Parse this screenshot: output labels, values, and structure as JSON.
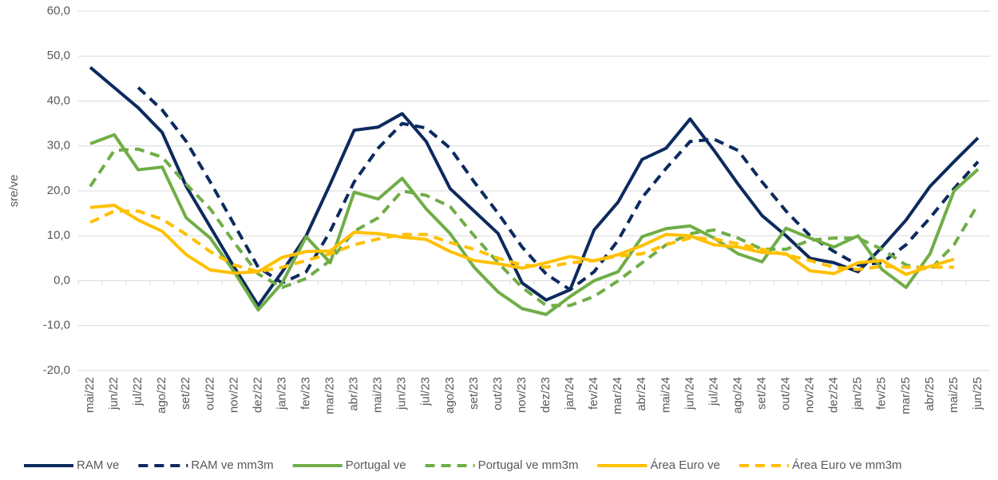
{
  "chart_data": {
    "type": "line",
    "y_label": "sre/ve",
    "categories": [
      "mai/22",
      "jun/22",
      "jul/22",
      "ago/22",
      "set/22",
      "out/22",
      "nov/22",
      "dez/22",
      "jan/23",
      "fev/23",
      "mar/23",
      "abr/23",
      "mai/23",
      "jun/23",
      "jul/23",
      "ago/23",
      "set/23",
      "out/23",
      "nov/23",
      "dez/23",
      "jan/24",
      "fev/24",
      "mar/24",
      "abr/24",
      "mai/24",
      "jun/24",
      "jul/24",
      "ago/24",
      "set/24",
      "out/24",
      "nov/24",
      "dez/24",
      "jan/25",
      "fev/25",
      "mar/25",
      "abr/25",
      "mai/25",
      "jun/25"
    ],
    "series": [
      {
        "name": "RAM ve",
        "color": "#0c2a5e",
        "dashed": false,
        "values": [
          47.5,
          43,
          38.5,
          33,
          21,
          12,
          3,
          -5.5,
          2,
          10,
          21.5,
          33.5,
          34.2,
          37.2,
          31,
          20.5,
          15.5,
          10.5,
          -0.5,
          -4.3,
          -2,
          11.3,
          17.5,
          27,
          29.5,
          36,
          29,
          21.5,
          14.5,
          10,
          5,
          4,
          2,
          7.5,
          13.5,
          21,
          26.5,
          31.8
        ]
      },
      {
        "name": "RAM ve mm3m",
        "color": "#0c2a5e",
        "dashed": true,
        "values": [
          null,
          null,
          43,
          38,
          31,
          22,
          12.5,
          3,
          -0.5,
          2,
          11,
          22,
          29.5,
          35,
          34,
          29.5,
          22,
          15,
          7.5,
          1.5,
          -2,
          2,
          9,
          18.5,
          25,
          31,
          31.5,
          29,
          22,
          15.5,
          10,
          6.5,
          3.5,
          4,
          8,
          14,
          20.5,
          26.5
        ]
      },
      {
        "name": "Portugal ve",
        "color": "#70ad47",
        "dashed": false,
        "values": [
          30.5,
          32.5,
          24.7,
          25.3,
          14,
          9.5,
          2,
          -6.5,
          -0.5,
          9.8,
          4,
          19.7,
          18.2,
          22.8,
          16,
          10.5,
          3,
          -2.5,
          -6.2,
          -7.5,
          -3.5,
          0,
          2,
          9.8,
          11.6,
          12.2,
          9.5,
          6,
          4.2,
          11.7,
          9.5,
          7.5,
          10,
          2.5,
          -1.5,
          6,
          20,
          24.8
        ]
      },
      {
        "name": "Portugal ve mm3m",
        "color": "#70ad47",
        "dashed": true,
        "values": [
          21,
          29,
          29.3,
          27.5,
          21.5,
          16,
          8.5,
          1.5,
          -1.5,
          0.5,
          4.5,
          11,
          14,
          20,
          19,
          16.5,
          10,
          4,
          -1.5,
          -5.5,
          -5.5,
          -3.5,
          0,
          4,
          8,
          10.5,
          11.3,
          9.5,
          7,
          7,
          9,
          9.5,
          9.5,
          7,
          3.5,
          2.5,
          8,
          17
        ]
      },
      {
        "name": "Área Euro ve",
        "color": "#ffc000",
        "dashed": false,
        "values": [
          16.3,
          16.8,
          13.5,
          11,
          5.8,
          2.4,
          1.7,
          2,
          5.2,
          6.5,
          6.6,
          10.8,
          10.5,
          9.7,
          9.2,
          6.5,
          4.5,
          3.8,
          2.8,
          4,
          5.4,
          4.4,
          5.8,
          7.8,
          10.3,
          10,
          8,
          7.5,
          6.3,
          6,
          2.2,
          1.6,
          4,
          4.5,
          1.4,
          3.2,
          4.8,
          null
        ]
      },
      {
        "name": "Área Euro ve mm3m",
        "color": "#ffc000",
        "dashed": true,
        "values": [
          13,
          15.5,
          15.5,
          13.7,
          10.3,
          6.5,
          3.5,
          2,
          3,
          4.5,
          6,
          8,
          9.3,
          10.3,
          10.3,
          8.5,
          7,
          5,
          3.5,
          3,
          4,
          4.5,
          5.5,
          6,
          8,
          9.5,
          9.3,
          8.2,
          7,
          5.8,
          4.5,
          3,
          2.5,
          3.2,
          3,
          3,
          3,
          null
        ]
      }
    ],
    "ylim": [
      -20,
      60
    ],
    "yticks": [
      {
        "value": -20,
        "label": "-20,0"
      },
      {
        "value": -10,
        "label": "-10,0"
      },
      {
        "value": 0,
        "label": "0,0"
      },
      {
        "value": 10,
        "label": "10,0"
      },
      {
        "value": 20,
        "label": "20,0"
      },
      {
        "value": 30,
        "label": "30,0"
      },
      {
        "value": 40,
        "label": "40,0"
      },
      {
        "value": 50,
        "label": "50,0"
      },
      {
        "value": 60,
        "label": "60,0"
      }
    ],
    "grid": true,
    "legend": "bottom"
  }
}
